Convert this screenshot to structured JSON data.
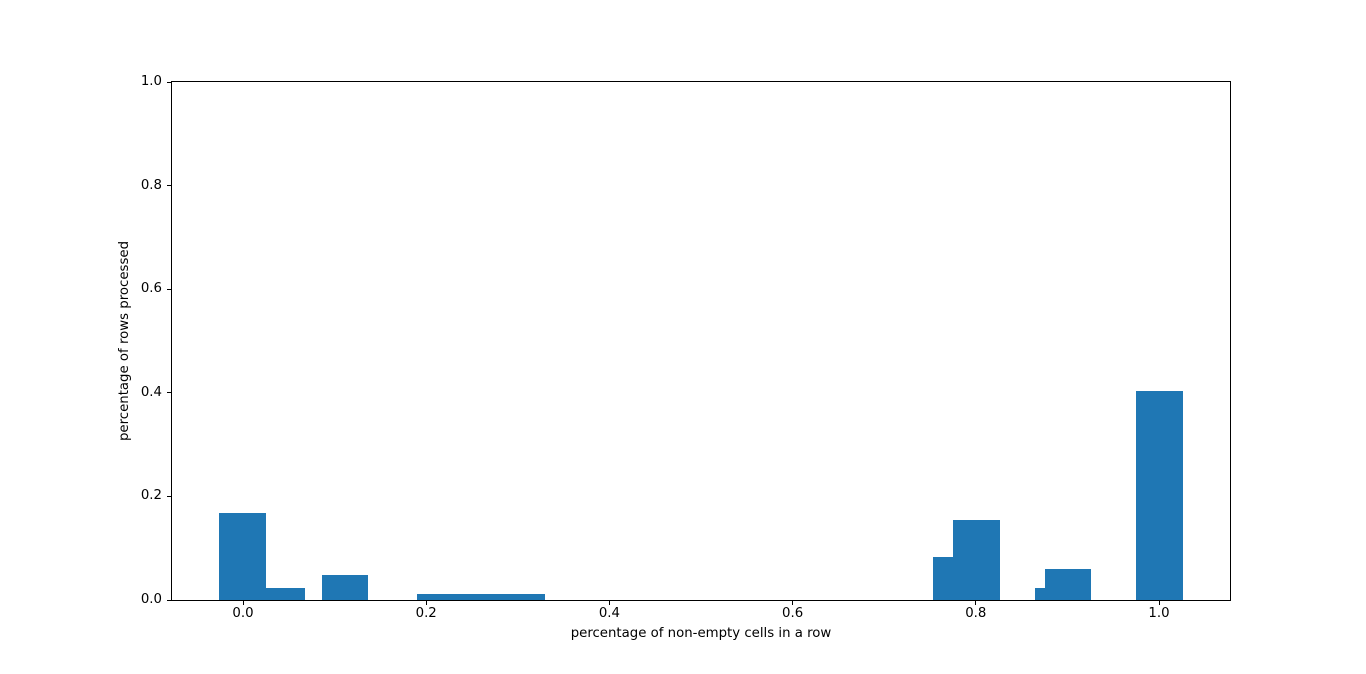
{
  "figure": {
    "background_color": "#ffffff",
    "axes_edge_color": "#000000",
    "text_color": "#000000"
  },
  "chart_data": {
    "type": "bar",
    "title": "",
    "xlabel": "percentage of non-empty cells in a row",
    "ylabel": "percentage of rows processed",
    "xlim": [
      -0.0775,
      1.0775
    ],
    "ylim": [
      0,
      1
    ],
    "grid": false,
    "legend_position": "none",
    "bar_color": "#1f77b4",
    "x_ticks": [
      0.0,
      0.2,
      0.4,
      0.6,
      0.8,
      1.0
    ],
    "x_tick_labels": [
      "0.0",
      "0.2",
      "0.4",
      "0.6",
      "0.8",
      "1.0"
    ],
    "y_ticks": [
      0.0,
      0.2,
      0.4,
      0.6,
      0.8,
      1.0
    ],
    "y_tick_labels": [
      "0.0",
      "0.2",
      "0.4",
      "0.6",
      "0.8",
      "1.0"
    ],
    "bars": [
      {
        "x_left": -0.026,
        "x_right": 0.025,
        "height": 0.168
      },
      {
        "x_left": 0.025,
        "x_right": 0.068,
        "height": 0.023
      },
      {
        "x_left": 0.086,
        "x_right": 0.137,
        "height": 0.049
      },
      {
        "x_left": 0.19,
        "x_right": 0.33,
        "height": 0.012
      },
      {
        "x_left": 0.753,
        "x_right": 0.775,
        "height": 0.083
      },
      {
        "x_left": 0.775,
        "x_right": 0.826,
        "height": 0.154
      },
      {
        "x_left": 0.865,
        "x_right": 0.876,
        "height": 0.023
      },
      {
        "x_left": 0.876,
        "x_right": 0.926,
        "height": 0.059
      },
      {
        "x_left": 0.975,
        "x_right": 1.026,
        "height": 0.404
      }
    ]
  }
}
